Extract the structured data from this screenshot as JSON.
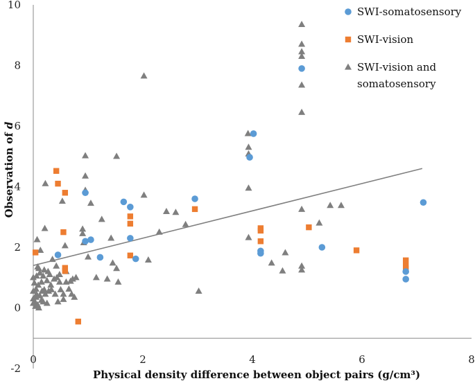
{
  "chart_data": {
    "type": "scatter",
    "title": "",
    "xlabel": "Physical density difference between object pairs (g/cm³)",
    "ylabel_prefix": "Observation of ",
    "ylabel_var": "d",
    "xlim": [
      0,
      8
    ],
    "ylim": [
      -2,
      10
    ],
    "x_ticks": [
      0,
      2,
      4,
      6,
      8
    ],
    "y_ticks": [
      -2,
      0,
      2,
      4,
      6,
      8,
      10
    ],
    "trendline": {
      "x": [
        0,
        7.1
      ],
      "y": [
        1.4,
        4.6
      ],
      "color": "#808080"
    },
    "legend": {
      "position": "top-right"
    },
    "series": [
      {
        "name": "SWI-somatosensory",
        "legend_lines": [
          "SWI-somatosensory"
        ],
        "marker": "circle",
        "color": "#5B9BD5",
        "points": [
          [
            0.45,
            1.75
          ],
          [
            0.95,
            2.2
          ],
          [
            0.95,
            3.8
          ],
          [
            1.05,
            2.25
          ],
          [
            1.22,
            1.67
          ],
          [
            1.65,
            3.5
          ],
          [
            1.77,
            3.33
          ],
          [
            1.77,
            2.3
          ],
          [
            1.87,
            1.62
          ],
          [
            2.95,
            3.6
          ],
          [
            3.95,
            4.97
          ],
          [
            4.02,
            5.75
          ],
          [
            4.15,
            1.88
          ],
          [
            4.15,
            1.8
          ],
          [
            4.9,
            7.9
          ],
          [
            5.27,
            2.0
          ],
          [
            6.8,
            1.2
          ],
          [
            6.8,
            0.95
          ],
          [
            7.12,
            3.48
          ]
        ]
      },
      {
        "name": "SWI-vision",
        "legend_lines": [
          "SWI-vision"
        ],
        "marker": "square",
        "color": "#ED7D31",
        "points": [
          [
            0.04,
            1.83
          ],
          [
            0.42,
            4.52
          ],
          [
            0.45,
            4.1
          ],
          [
            0.55,
            2.5
          ],
          [
            0.58,
            3.8
          ],
          [
            0.58,
            1.32
          ],
          [
            0.58,
            1.22
          ],
          [
            0.82,
            -0.45
          ],
          [
            1.77,
            3.02
          ],
          [
            1.77,
            2.78
          ],
          [
            1.77,
            1.73
          ],
          [
            2.95,
            3.26
          ],
          [
            4.15,
            2.63
          ],
          [
            4.15,
            2.55
          ],
          [
            4.15,
            2.2
          ],
          [
            5.03,
            2.66
          ],
          [
            5.9,
            1.9
          ],
          [
            6.8,
            1.57
          ],
          [
            6.8,
            1.38
          ],
          [
            6.8,
            1.3
          ]
        ]
      },
      {
        "name": "SWI-vision and somatosensory",
        "legend_lines": [
          "SWI-vision and",
          "somatosensory"
        ],
        "marker": "triangle",
        "color": "#7F7F7F",
        "points": [
          [
            0.0,
            1.0
          ],
          [
            0.0,
            0.55
          ],
          [
            0.0,
            0.3
          ],
          [
            0.0,
            0.15
          ],
          [
            0.02,
            0.82
          ],
          [
            0.03,
            0.2
          ],
          [
            0.04,
            0.05
          ],
          [
            0.05,
            0.62
          ],
          [
            0.05,
            0.35
          ],
          [
            0.06,
            1.05
          ],
          [
            0.06,
            0.45
          ],
          [
            0.07,
            2.25
          ],
          [
            0.08,
            1.35
          ],
          [
            0.08,
            0.1
          ],
          [
            0.09,
            0.75
          ],
          [
            0.1,
            1.3
          ],
          [
            0.1,
            0.0
          ],
          [
            0.12,
            1.15
          ],
          [
            0.12,
            0.4
          ],
          [
            0.13,
            1.9
          ],
          [
            0.15,
            0.85
          ],
          [
            0.15,
            0.25
          ],
          [
            0.16,
            0.55
          ],
          [
            0.18,
            1.05
          ],
          [
            0.18,
            0.2
          ],
          [
            0.2,
            1.25
          ],
          [
            0.2,
            0.6
          ],
          [
            0.21,
            2.62
          ],
          [
            0.22,
            4.1
          ],
          [
            0.22,
            0.45
          ],
          [
            0.25,
            0.9
          ],
          [
            0.25,
            0.15
          ],
          [
            0.27,
            1.2
          ],
          [
            0.28,
            0.55
          ],
          [
            0.3,
            1.1
          ],
          [
            0.32,
            0.75
          ],
          [
            0.33,
            0.6
          ],
          [
            0.35,
            1.6
          ],
          [
            0.38,
            0.95
          ],
          [
            0.4,
            0.45
          ],
          [
            0.42,
            1.38
          ],
          [
            0.43,
            1.0
          ],
          [
            0.45,
            0.2
          ],
          [
            0.48,
            1.1
          ],
          [
            0.48,
            0.85
          ],
          [
            0.5,
            0.6
          ],
          [
            0.53,
            3.52
          ],
          [
            0.55,
            0.45
          ],
          [
            0.55,
            0.28
          ],
          [
            0.58,
            2.05
          ],
          [
            0.6,
            1.2
          ],
          [
            0.6,
            0.85
          ],
          [
            0.65,
            0.62
          ],
          [
            0.68,
            0.88
          ],
          [
            0.7,
            0.45
          ],
          [
            0.72,
            0.95
          ],
          [
            0.75,
            0.35
          ],
          [
            0.78,
            1.0
          ],
          [
            0.9,
            2.6
          ],
          [
            0.9,
            2.45
          ],
          [
            0.92,
            2.15
          ],
          [
            0.95,
            5.02
          ],
          [
            0.95,
            4.35
          ],
          [
            0.95,
            3.88
          ],
          [
            1.0,
            1.68
          ],
          [
            1.05,
            3.45
          ],
          [
            1.15,
            1.0
          ],
          [
            1.25,
            2.92
          ],
          [
            1.35,
            0.95
          ],
          [
            1.42,
            2.3
          ],
          [
            1.45,
            1.48
          ],
          [
            1.52,
            5.0
          ],
          [
            1.52,
            1.3
          ],
          [
            1.55,
            0.85
          ],
          [
            2.02,
            7.65
          ],
          [
            2.02,
            3.72
          ],
          [
            2.1,
            1.58
          ],
          [
            2.3,
            2.5
          ],
          [
            2.43,
            3.18
          ],
          [
            2.6,
            3.15
          ],
          [
            2.78,
            2.75
          ],
          [
            3.02,
            0.55
          ],
          [
            3.92,
            5.75
          ],
          [
            3.93,
            5.3
          ],
          [
            3.93,
            5.08
          ],
          [
            3.93,
            3.95
          ],
          [
            3.93,
            2.32
          ],
          [
            4.35,
            1.48
          ],
          [
            4.55,
            1.22
          ],
          [
            4.6,
            1.82
          ],
          [
            4.9,
            9.35
          ],
          [
            4.9,
            8.7
          ],
          [
            4.9,
            8.45
          ],
          [
            4.9,
            8.3
          ],
          [
            4.9,
            7.35
          ],
          [
            4.9,
            6.45
          ],
          [
            4.9,
            3.25
          ],
          [
            4.9,
            1.38
          ],
          [
            4.9,
            1.25
          ],
          [
            5.22,
            2.8
          ],
          [
            5.42,
            3.38
          ],
          [
            5.62,
            3.38
          ]
        ]
      }
    ]
  }
}
